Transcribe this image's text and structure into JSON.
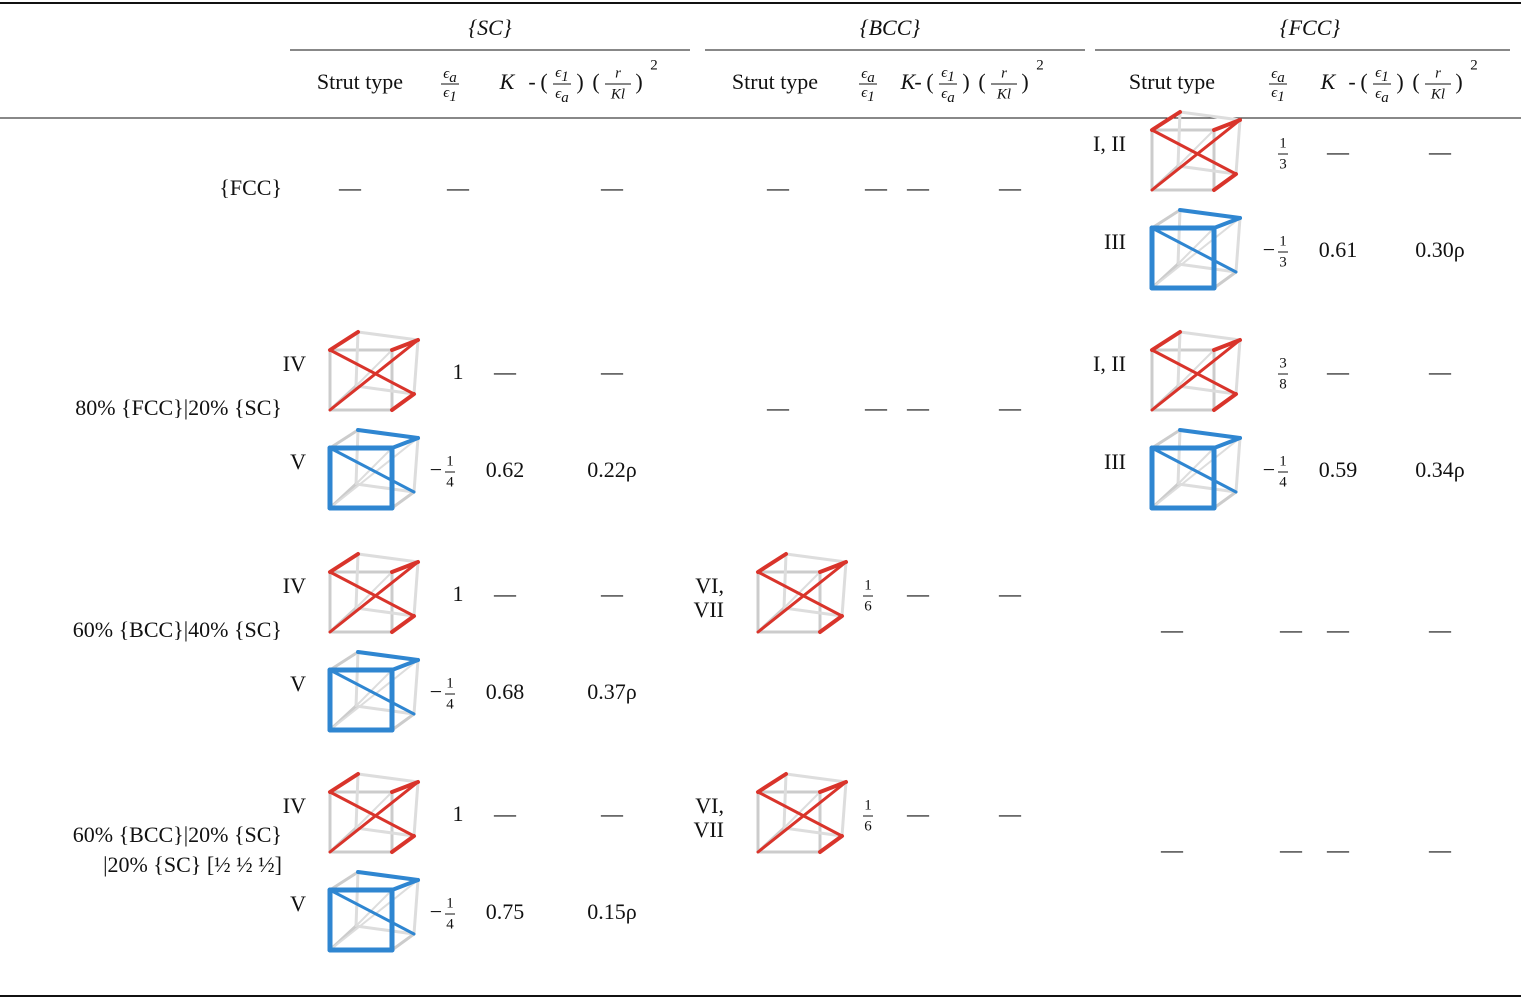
{
  "table": {
    "groups": [
      "{SC}",
      "{BCC}",
      "{FCC}"
    ],
    "subheader": {
      "strut_type": "Strut type",
      "ratio": {
        "num": "ϵ",
        "num_sub": "a",
        "den": "ϵ",
        "den_sub": "1"
      },
      "k": "K",
      "buckling": {
        "sign": "-",
        "open": "(",
        "close": ")",
        "f1": {
          "num": "ϵ",
          "num_sub": "1",
          "den": "ϵ",
          "den_sub": "a"
        },
        "f2": {
          "num": "r",
          "den": "Kl"
        },
        "power": "2"
      }
    },
    "rows": [
      {
        "label": [
          "{FCC}"
        ],
        "sections": [
          [
            {
              "strut": "—",
              "ratio": "—",
              "buckling": "—"
            }
          ],
          [
            {
              "strut": "—",
              "ratio": "—",
              "k": "—",
              "buckling": "—"
            }
          ],
          [
            {
              "strut": "I, II",
              "color": "#d9342b",
              "ratio": {
                "num": "1",
                "den": "3"
              },
              "k": "—",
              "buckling": "—"
            },
            {
              "strut": "III",
              "color": "#2f86d1",
              "ratio": {
                "sign": "−",
                "num": "1",
                "den": "3"
              },
              "k": 0.61,
              "buckling": "0.30ρ"
            }
          ]
        ]
      },
      {
        "label": [
          "80% {FCC}|20% {SC}"
        ],
        "sections": [
          [
            {
              "strut": "IV",
              "color": "#d9342b",
              "ratio": "1",
              "k": "—",
              "buckling": "—"
            },
            {
              "strut": "V",
              "color": "#2f86d1",
              "ratio": {
                "sign": "−",
                "num": "1",
                "den": "4"
              },
              "k": 0.62,
              "buckling": "0.22ρ"
            }
          ],
          [
            {
              "strut": "—",
              "ratio": "—",
              "k": "—",
              "buckling": "—"
            }
          ],
          [
            {
              "strut": "I, II",
              "color": "#d9342b",
              "ratio": {
                "num": "3",
                "den": "8"
              },
              "k": "—",
              "buckling": "—"
            },
            {
              "strut": "III",
              "color": "#2f86d1",
              "ratio": {
                "sign": "−",
                "num": "1",
                "den": "4"
              },
              "k": 0.59,
              "buckling": "0.34ρ"
            }
          ]
        ]
      },
      {
        "label": [
          "60% {BCC}|40% {SC}"
        ],
        "sections": [
          [
            {
              "strut": "IV",
              "color": "#d9342b",
              "ratio": "1",
              "k": "—",
              "buckling": "—"
            },
            {
              "strut": "V",
              "color": "#2f86d1",
              "ratio": {
                "sign": "−",
                "num": "1",
                "den": "4"
              },
              "k": 0.68,
              "buckling": "0.37ρ"
            }
          ],
          [
            {
              "strut": [
                "VI,",
                "VII"
              ],
              "color": "#d9342b",
              "ratio": {
                "num": "1",
                "den": "6"
              },
              "k": "—",
              "buckling": "—"
            }
          ],
          [
            {
              "strut": "—",
              "ratio": "—",
              "k": "—",
              "buckling": "—"
            }
          ]
        ]
      },
      {
        "label": [
          "60% {BCC}|20% {SC}",
          "|20% {SC} [½ ½ ½]"
        ],
        "sections": [
          [
            {
              "strut": "IV",
              "color": "#d9342b",
              "ratio": "1",
              "k": "—",
              "buckling": "—"
            },
            {
              "strut": "V",
              "color": "#2f86d1",
              "ratio": {
                "sign": "−",
                "num": "1",
                "den": "4"
              },
              "k": 0.75,
              "buckling": "0.15ρ"
            }
          ],
          [
            {
              "strut": [
                "VI,",
                "VII"
              ],
              "color": "#d9342b",
              "ratio": {
                "num": "1",
                "den": "6"
              },
              "k": "—",
              "buckling": "—"
            }
          ],
          [
            {
              "strut": "—",
              "ratio": "—",
              "k": "—",
              "buckling": "—"
            }
          ]
        ]
      }
    ]
  }
}
